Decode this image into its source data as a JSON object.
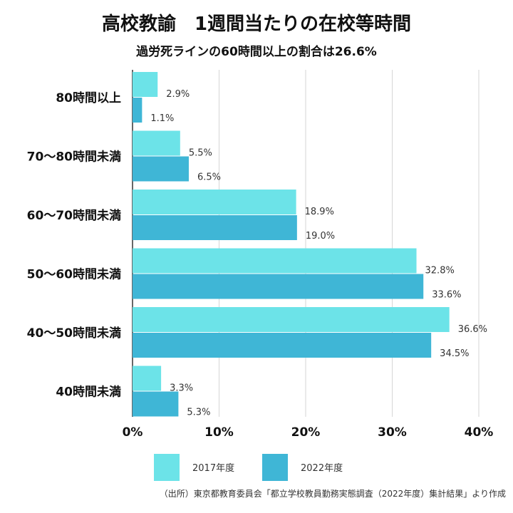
{
  "title": "高校教諭　1週間当たりの在校等時間",
  "subtitle": "過労死ラインの60時間以上の割合は26.6%",
  "source": "（出所）東京都教育委員会「都立学校教員勤務実態調査（2022年度）集計結果」より作成",
  "colors": {
    "s2017": "#6ce3e8",
    "s2022": "#3fb6d6",
    "grid": "#d6d6d6",
    "axis": "#333333"
  },
  "chart_data": {
    "type": "bar",
    "orientation": "horizontal",
    "categories": [
      "80時間以上",
      "70〜80時間未満",
      "60〜70時間未満",
      "50〜60時間未満",
      "40〜50時間未満",
      "40時間未満"
    ],
    "series": [
      {
        "name": "2017年度",
        "values": [
          2.9,
          5.5,
          18.9,
          32.8,
          36.6,
          3.3
        ],
        "labels": [
          "2.9%",
          "5.5%",
          "18.9%",
          "32.8%",
          "36.6%",
          "3.3%"
        ]
      },
      {
        "name": "2022年度",
        "values": [
          1.1,
          6.5,
          19.0,
          33.6,
          34.5,
          5.3
        ],
        "labels": [
          "1.1%",
          "6.5%",
          "19.0%",
          "33.6%",
          "34.5%",
          "5.3%"
        ]
      }
    ],
    "xlim": [
      0,
      40
    ],
    "xticks": [
      0,
      10,
      20,
      30,
      40
    ],
    "xtick_labels": [
      "0%",
      "10%",
      "20%",
      "30%",
      "40%"
    ],
    "grid": true,
    "legend_position": "bottom"
  }
}
